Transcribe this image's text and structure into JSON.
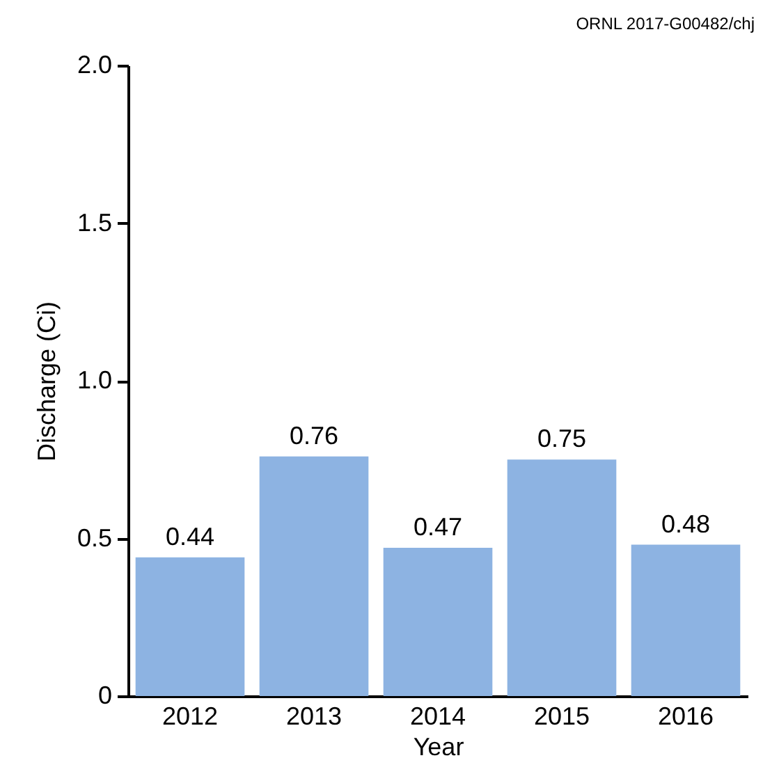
{
  "chart_data": {
    "type": "bar",
    "categories": [
      "2012",
      "2013",
      "2014",
      "2015",
      "2016"
    ],
    "values": [
      0.44,
      0.76,
      0.47,
      0.75,
      0.48
    ],
    "color": "#8db3e2",
    "xlabel": "Year",
    "ylabel": "Discharge (Ci)",
    "ylim": [
      0,
      2.0
    ],
    "yticks": [
      {
        "value": 0,
        "label": "0"
      },
      0.5,
      {
        "value": 1.0,
        "label": "1.0"
      },
      1.5,
      {
        "value": 2.0,
        "label": "2.0"
      }
    ],
    "grid": false,
    "data_labels": true,
    "annotations": [
      "ORNL 2017-G00482/chj"
    ]
  }
}
